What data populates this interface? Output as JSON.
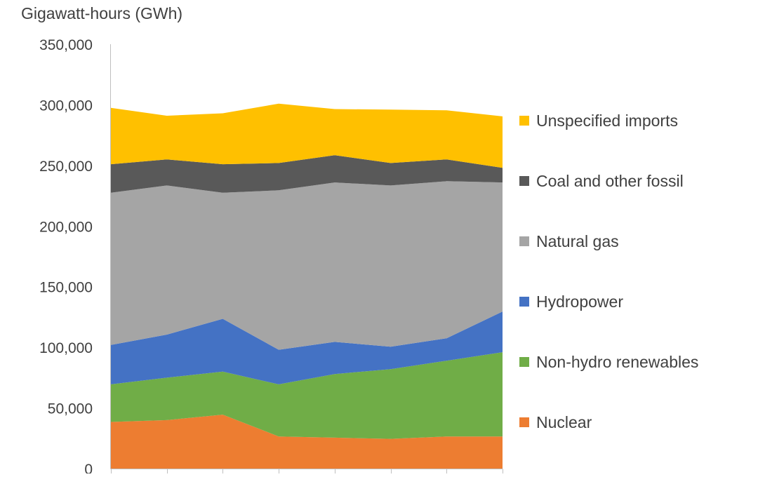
{
  "chart_data": {
    "type": "area",
    "stacked": true,
    "ylabel": "Gigawatt-hours (GWh)",
    "xlabel": "",
    "title": "",
    "ylim": [
      0,
      350000
    ],
    "y_ticks": [
      0,
      50000,
      100000,
      150000,
      200000,
      250000,
      300000,
      350000
    ],
    "y_tick_labels": [
      "0",
      "50,000",
      "100,000",
      "150,000",
      "200,000",
      "250,000",
      "300,000",
      "350,000"
    ],
    "grid": false,
    "legend_position": "right",
    "point_count": 8,
    "series": [
      {
        "name": "Nuclear",
        "color": "#ED7D31",
        "values": [
          38500,
          40000,
          44500,
          26500,
          25500,
          24500,
          26500,
          26500
        ]
      },
      {
        "name": "Non-hydro renewables",
        "color": "#70AD47",
        "values": [
          31000,
          35000,
          35500,
          43000,
          52500,
          57500,
          62500,
          69500
        ]
      },
      {
        "name": "Hydropower",
        "color": "#4472C4",
        "values": [
          32500,
          35500,
          43500,
          28500,
          26500,
          18500,
          18500,
          33500
        ]
      },
      {
        "name": "Natural gas",
        "color": "#A5A5A5",
        "values": [
          125500,
          123000,
          104000,
          131500,
          131500,
          133000,
          129500,
          106500
        ]
      },
      {
        "name": "Coal and other fossil",
        "color": "#595959",
        "values": [
          23500,
          21500,
          23500,
          22500,
          22500,
          18500,
          18000,
          12000
        ]
      },
      {
        "name": "Unspecified imports",
        "color": "#FFC000",
        "values": [
          46500,
          36000,
          42000,
          49000,
          38000,
          44000,
          40500,
          42500
        ]
      }
    ]
  }
}
